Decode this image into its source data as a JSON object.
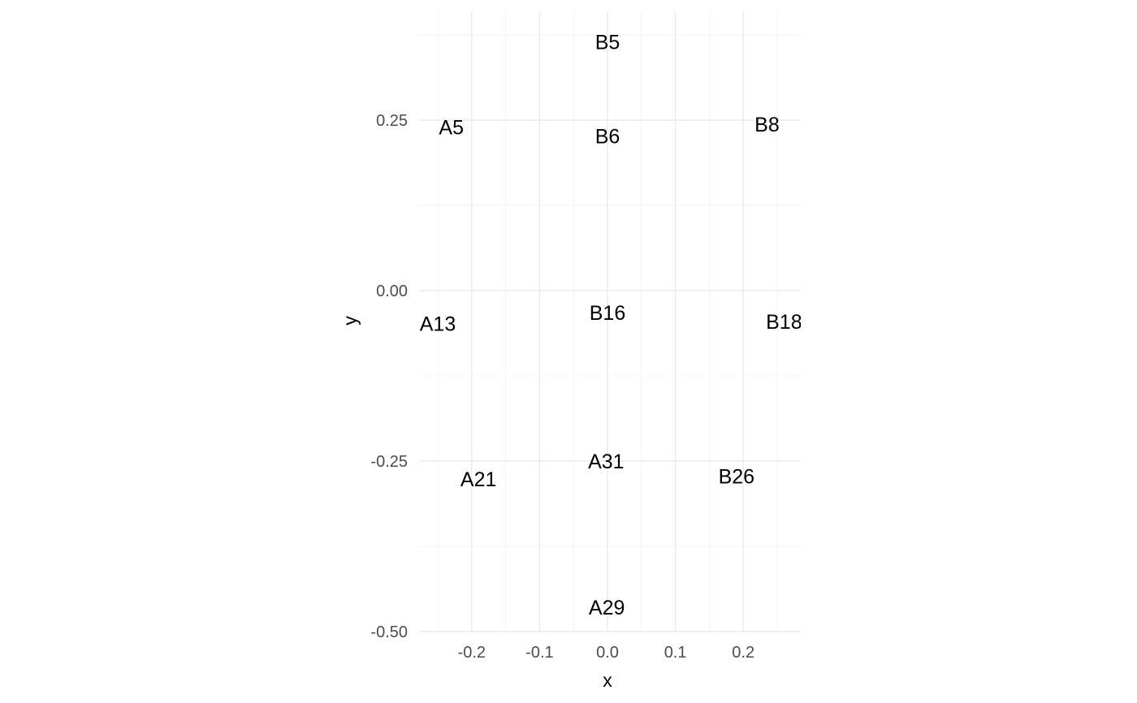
{
  "chart_data": {
    "type": "scatter",
    "title": "",
    "xlabel": "x",
    "ylabel": "y",
    "xlim": [
      -0.28,
      0.28
    ],
    "ylim": [
      -0.5,
      0.375
    ],
    "x_ticks": [
      -0.2,
      -0.1,
      0.0,
      0.1,
      0.2
    ],
    "x_tick_labels": [
      "-0.2",
      "-0.1",
      "0.0",
      "0.1",
      "0.2"
    ],
    "y_ticks": [
      0.25,
      0.0,
      -0.25,
      -0.5
    ],
    "y_tick_labels": [
      "0.25",
      "0.00",
      "-0.25",
      "-0.50"
    ],
    "grid": true,
    "legend": "none",
    "points": [
      {
        "label": "B5",
        "x": 0.0,
        "y": 0.365
      },
      {
        "label": "A5",
        "x": -0.23,
        "y": 0.24
      },
      {
        "label": "B6",
        "x": 0.0,
        "y": 0.227
      },
      {
        "label": "B8",
        "x": 0.235,
        "y": 0.244
      },
      {
        "label": "A13",
        "x": -0.25,
        "y": -0.048
      },
      {
        "label": "B16",
        "x": 0.0,
        "y": -0.032
      },
      {
        "label": "B18",
        "x": 0.26,
        "y": -0.045
      },
      {
        "label": "A31",
        "x": -0.002,
        "y": -0.25
      },
      {
        "label": "A21",
        "x": -0.19,
        "y": -0.276
      },
      {
        "label": "B26",
        "x": 0.19,
        "y": -0.272
      },
      {
        "label": "A29",
        "x": -0.001,
        "y": -0.464
      }
    ],
    "colors": {
      "grid_major": "#ebebeb",
      "grid_minor": "#f2f2f2",
      "tick_text": "#4d4d4d",
      "label_text": "#000000"
    }
  }
}
